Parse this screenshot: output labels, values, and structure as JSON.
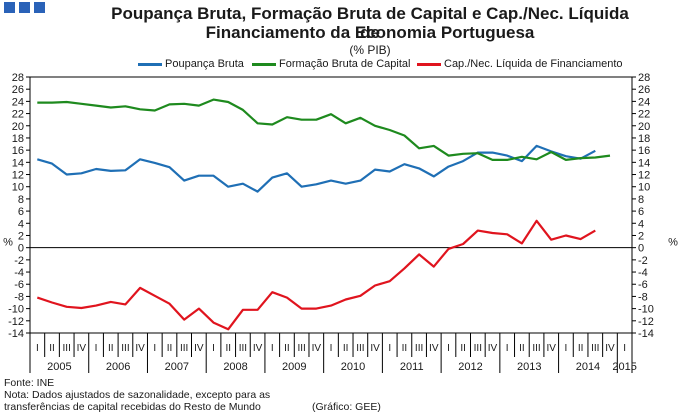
{
  "logo_squares": 3,
  "colors": {
    "poupanca": "#1f6fb5",
    "fbc": "#1e8a1e",
    "cap": "#e0141e",
    "axis": "#000000"
  },
  "title_line1": "Poupança Bruta, Formação Bruta de Capital e Cap./Nec. Líquida de",
  "title_line2": "Financiamento da Economia Portuguesa",
  "subtitle": "(% PIB)",
  "footnote": {
    "source": "Fonte: INE",
    "note_line1": "Nota: Dados ajustados de sazonalidade, excepto para as",
    "note_line2": "transferências de capital recebidas do Resto de Mundo",
    "credit": "(Gráfico: GEE)"
  },
  "chart_data": {
    "type": "line",
    "title": "Poupança Bruta, Formação Bruta de Capital e Cap./Nec. Líquida de Financiamento da Economia Portuguesa",
    "subtitle": "(% PIB)",
    "ylabel": "%",
    "ylim": [
      -14,
      28
    ],
    "yticks": [
      -14,
      -12,
      -10,
      -8,
      -6,
      -4,
      -2,
      0,
      2,
      4,
      6,
      8,
      10,
      12,
      14,
      16,
      18,
      20,
      22,
      24,
      26,
      28
    ],
    "quarter_labels": [
      "I",
      "II",
      "III",
      "IV"
    ],
    "years": [
      "2005",
      "2006",
      "2007",
      "2008",
      "2009",
      "2010",
      "2011",
      "2012",
      "2013",
      "2014",
      "2015"
    ],
    "categories": [
      "2005 I",
      "2005 II",
      "2005 III",
      "2005 IV",
      "2006 I",
      "2006 II",
      "2006 III",
      "2006 IV",
      "2007 I",
      "2007 II",
      "2007 III",
      "2007 IV",
      "2008 I",
      "2008 II",
      "2008 III",
      "2008 IV",
      "2009 I",
      "2009 II",
      "2009 III",
      "2009 IV",
      "2010 I",
      "2010 II",
      "2010 III",
      "2010 IV",
      "2011 I",
      "2011 II",
      "2011 III",
      "2011 IV",
      "2012 I",
      "2012 II",
      "2012 III",
      "2012 IV",
      "2013 I",
      "2013 II",
      "2013 III",
      "2013 IV",
      "2014 I",
      "2014 II",
      "2014 III",
      "2014 IV",
      "2015 I"
    ],
    "series": [
      {
        "name": "Poupança Bruta",
        "color": "#1f6fb5",
        "values": [
          14.5,
          13.8,
          12.0,
          12.2,
          12.9,
          12.6,
          12.7,
          14.5,
          13.9,
          13.2,
          11.0,
          11.8,
          11.8,
          10.0,
          10.5,
          9.2,
          11.5,
          12.2,
          10.0,
          10.4,
          11.0,
          10.5,
          11.0,
          12.8,
          12.5,
          13.7,
          13.0,
          11.7,
          13.3,
          14.2,
          15.6,
          15.6,
          15.1,
          14.2,
          16.7,
          15.8,
          15.0,
          14.6,
          15.9,
          null,
          null
        ]
      },
      {
        "name": "Formação Bruta de Capital",
        "color": "#1e8a1e",
        "values": [
          23.8,
          23.8,
          23.9,
          23.6,
          23.3,
          23.0,
          23.2,
          22.7,
          22.5,
          23.5,
          23.6,
          23.3,
          24.3,
          23.9,
          22.6,
          20.4,
          20.2,
          21.4,
          21.0,
          21.0,
          21.9,
          20.4,
          21.3,
          20.0,
          19.3,
          18.4,
          16.3,
          16.7,
          15.1,
          15.4,
          15.5,
          14.4,
          14.4,
          14.9,
          14.5,
          15.7,
          14.4,
          14.7,
          14.8,
          15.1,
          null
        ]
      },
      {
        "name": "Cap./Nec. Líquida de Financiamento",
        "color": "#e0141e",
        "values": [
          -8.2,
          -9.0,
          -9.7,
          -9.9,
          -9.5,
          -8.9,
          -9.3,
          -6.6,
          -7.9,
          -9.2,
          -11.8,
          -10.0,
          -12.3,
          -13.4,
          -10.2,
          -10.2,
          -7.3,
          -8.2,
          -10.0,
          -10.0,
          -9.5,
          -8.5,
          -7.9,
          -6.2,
          -5.5,
          -3.4,
          -1.1,
          -3.1,
          -0.2,
          0.6,
          2.8,
          2.4,
          2.2,
          0.7,
          4.4,
          1.3,
          2.0,
          1.4,
          2.8,
          null,
          null
        ]
      }
    ]
  }
}
